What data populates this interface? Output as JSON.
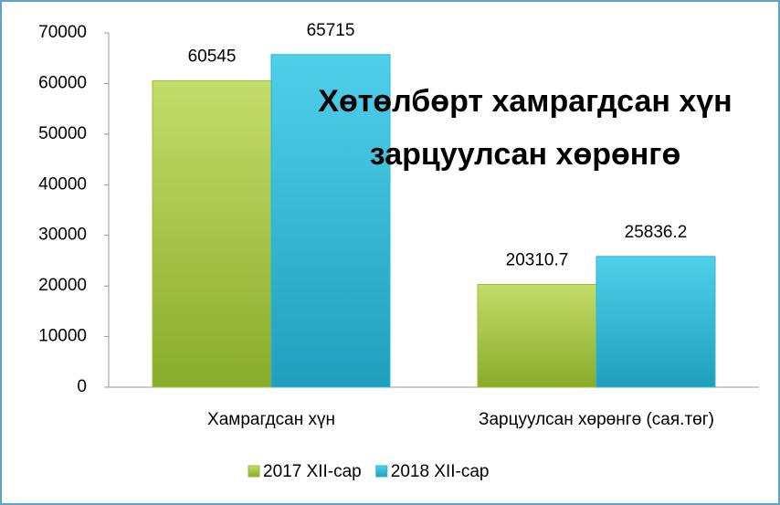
{
  "chart_data": {
    "type": "bar",
    "title": "Хөтөлбөрт хамрагдсан хүн зарцуулсан хөрөнгө",
    "categories": [
      "Хамрагдсан хүн",
      "Зарцуулсан хөрөнгө (сая.төг)"
    ],
    "series": [
      {
        "name": "2017 XII-сар",
        "color": "#9bbb3a",
        "values": [
          60545,
          20310.7
        ]
      },
      {
        "name": "2018 XII-сар",
        "color": "#2fb5d3",
        "values": [
          65715,
          25836.2
        ]
      }
    ],
    "ylim": [
      0,
      70000
    ],
    "yticks": [
      0,
      10000,
      20000,
      30000,
      40000,
      50000,
      60000,
      70000
    ],
    "grid": false,
    "legend": "bottom"
  }
}
